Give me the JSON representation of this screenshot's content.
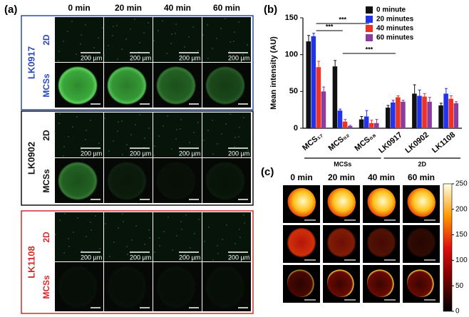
{
  "panel_a": {
    "label": "(a)",
    "time_labels": [
      "0 min",
      "20 min",
      "40 min",
      "60 min"
    ],
    "scale_bar": "200 µm",
    "groups": [
      {
        "name": "LK0917",
        "color": "#2b4bb8",
        "rows": [
          "2D",
          "MCSs"
        ]
      },
      {
        "name": "LK0902",
        "color": "#111111",
        "rows": [
          "2D",
          "MCSs"
        ]
      },
      {
        "name": "LK1108",
        "color": "#d62b2b",
        "rows": [
          "2D",
          "MCSs"
        ]
      }
    ]
  },
  "chart_data": {
    "type": "bar",
    "label": "(b)",
    "ylabel": "Mean intensity (AU)",
    "categories": [
      "MCS₁₇",
      "MCS₀₂",
      "MCS₀₈",
      "LK0917",
      "LK0902",
      "LK1108"
    ],
    "category_groups": [
      "MCSs",
      "2D"
    ],
    "series": [
      {
        "name": "0 minute",
        "color": "#111111",
        "values": [
          118,
          84,
          12,
          28,
          47,
          31
        ],
        "errors": [
          8,
          8,
          4,
          3,
          12,
          3
        ]
      },
      {
        "name": "20 minutes",
        "color": "#2233ee",
        "values": [
          125,
          24,
          16,
          35,
          44,
          47
        ],
        "errors": [
          4,
          2,
          8,
          3,
          8,
          7
        ]
      },
      {
        "name": "40 minutes",
        "color": "#ee3322",
        "values": [
          83,
          9,
          7,
          42,
          43,
          40
        ],
        "errors": [
          8,
          3,
          4,
          2,
          4,
          4
        ]
      },
      {
        "name": "60 minutes",
        "color": "#8e3b9e",
        "values": [
          50,
          3,
          7,
          36,
          36,
          34
        ],
        "errors": [
          6,
          1,
          5,
          2,
          6,
          2
        ]
      }
    ],
    "annotations": [
      "***",
      "***",
      "***"
    ],
    "ylim": [
      0,
      150
    ],
    "yticks": [
      0,
      50,
      100,
      150
    ],
    "legend": "top-right"
  },
  "panel_c": {
    "label": "(c)",
    "time_labels": [
      "0 min",
      "20 min",
      "40 min",
      "60 min"
    ],
    "colorbar": {
      "lim": [
        0,
        250
      ],
      "ticks": [
        0,
        50,
        100,
        150,
        200,
        250
      ]
    }
  }
}
